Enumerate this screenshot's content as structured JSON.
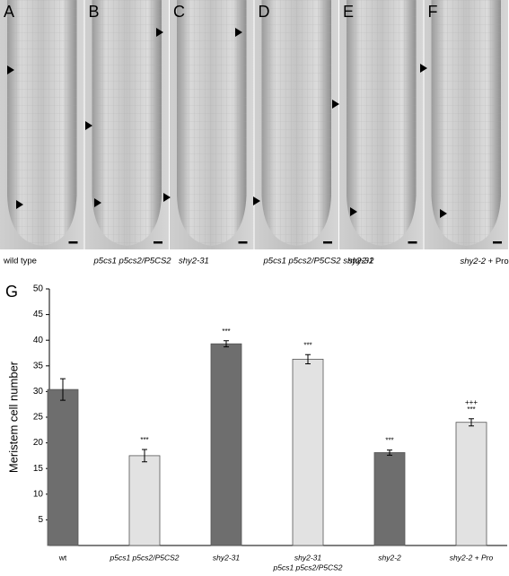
{
  "panels": [
    {
      "letter": "A",
      "caption": "wild type"
    },
    {
      "letter": "B",
      "caption": "p5cs1 p5cs2/P5CS2"
    },
    {
      "letter": "C",
      "caption": "shy2-31"
    },
    {
      "letter": "D",
      "caption": "p5cs1 p5cs2/P5CS2 shy2-31"
    },
    {
      "letter": "E",
      "caption": "shy2-2"
    },
    {
      "letter": "F",
      "caption": {
        "italic": "shy2-2",
        "plain": "+ Pro"
      }
    }
  ],
  "chart_data": {
    "type": "bar",
    "panel_letter": "G",
    "ylabel": "Meristem cell number",
    "categories": [
      "wt",
      "p5cs1 p5cs2/P5CS2",
      "shy2-31",
      [
        "shy2-31",
        "p5cs1 p5cs2/P5CS2"
      ],
      "shy2-2",
      "shy2-2 + Pro"
    ],
    "values": [
      30.4,
      17.5,
      39.3,
      36.3,
      18.1,
      24.0
    ],
    "errors": [
      2.1,
      1.2,
      0.6,
      0.9,
      0.5,
      0.7
    ],
    "colors": [
      "#6e6e6e",
      "#e2e2e2",
      "#6e6e6e",
      "#e2e2e2",
      "#6e6e6e",
      "#e2e2e2"
    ],
    "annotations": [
      null,
      "***",
      "***",
      "***",
      "***",
      [
        "+++",
        "***"
      ]
    ],
    "ylim": [
      0,
      50
    ],
    "yticks": [
      5,
      10,
      15,
      20,
      25,
      30,
      35,
      40,
      45,
      50
    ]
  }
}
